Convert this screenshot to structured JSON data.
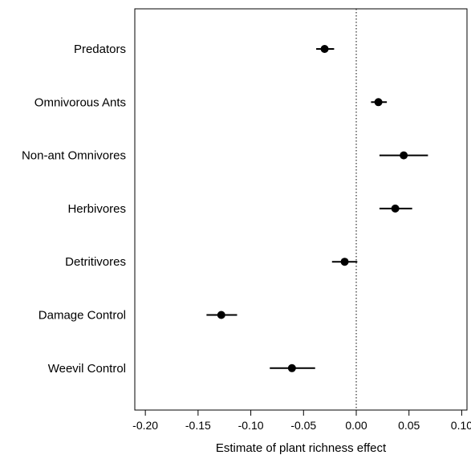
{
  "chart_data": {
    "type": "scatter",
    "orientation": "horizontal",
    "title": "",
    "xlabel": "Estimate of plant richness effect",
    "ylabel": "",
    "xlim": [
      -0.21,
      0.105
    ],
    "xticks": [
      -0.2,
      -0.15,
      -0.1,
      -0.05,
      0.0,
      0.05,
      0.1
    ],
    "xtick_labels": [
      "-0.20",
      "-0.15",
      "-0.10",
      "-0.05",
      "0.00",
      "0.05",
      "0.10"
    ],
    "reference_line": {
      "x": 0.0,
      "style": "dotted"
    },
    "grid": false,
    "legend": "none",
    "categories": [
      "Predators",
      "Omnivorous Ants",
      "Non-ant Omnivores",
      "Herbivores",
      "Detritivores",
      "Damage Control",
      "Weevil Control"
    ],
    "estimates": [
      -0.03,
      0.021,
      0.045,
      0.037,
      -0.011,
      -0.128,
      -0.061
    ],
    "lower": [
      -0.038,
      0.014,
      0.022,
      0.022,
      -0.023,
      -0.142,
      -0.082
    ],
    "upper": [
      -0.021,
      0.029,
      0.068,
      0.053,
      0.001,
      -0.113,
      -0.039
    ],
    "colors": {
      "marker": "#000000",
      "line": "#000000",
      "frame": "#000000"
    }
  }
}
